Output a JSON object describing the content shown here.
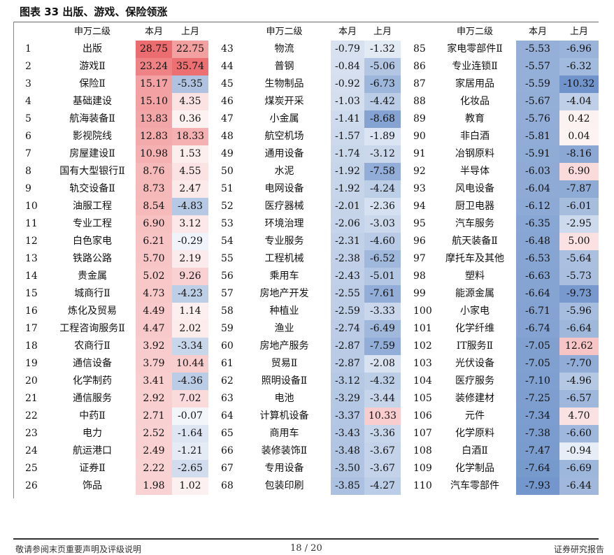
{
  "title": "图表 33 出版、游戏、保险领涨",
  "headers": {
    "industry": "申万二级",
    "this_month": "本月",
    "last_month": "上月"
  },
  "colors": {
    "neg_strong": "#6c91c9",
    "pos_strong": "#ec6d6f",
    "neutral": "#ffffff"
  },
  "rows": [
    {
      "rank": "1",
      "name": "出版",
      "this": 28.75,
      "last": 22.75
    },
    {
      "rank": "2",
      "name": "游戏Ⅱ",
      "this": 23.24,
      "last": 35.74
    },
    {
      "rank": "3",
      "name": "保险Ⅱ",
      "this": 15.17,
      "last": -5.35
    },
    {
      "rank": "4",
      "name": "基础建设",
      "this": 15.1,
      "last": 4.35
    },
    {
      "rank": "5",
      "name": "航海装备Ⅱ",
      "this": 13.83,
      "last": 0.36
    },
    {
      "rank": "6",
      "name": "影视院线",
      "this": 12.83,
      "last": 18.33
    },
    {
      "rank": "7",
      "name": "房屋建设Ⅱ",
      "this": 10.98,
      "last": 1.53
    },
    {
      "rank": "8",
      "name": "国有大型银行Ⅱ",
      "this": 8.76,
      "last": 4.55
    },
    {
      "rank": "9",
      "name": "轨交设备Ⅱ",
      "this": 8.73,
      "last": 2.47
    },
    {
      "rank": "10",
      "name": "油服工程",
      "this": 8.54,
      "last": -4.83
    },
    {
      "rank": "11",
      "name": "专业工程",
      "this": 6.9,
      "last": 3.12
    },
    {
      "rank": "12",
      "name": "白色家电",
      "this": 6.21,
      "last": -0.29
    },
    {
      "rank": "13",
      "name": "铁路公路",
      "this": 5.7,
      "last": 2.19
    },
    {
      "rank": "14",
      "name": "贵金属",
      "this": 5.02,
      "last": 9.26
    },
    {
      "rank": "15",
      "name": "城商行Ⅱ",
      "this": 4.73,
      "last": -4.23
    },
    {
      "rank": "16",
      "name": "炼化及贸易",
      "this": 4.49,
      "last": 1.14
    },
    {
      "rank": "17",
      "name": "工程咨询服务Ⅱ",
      "this": 4.47,
      "last": 2.02
    },
    {
      "rank": "18",
      "name": "农商行Ⅱ",
      "this": 3.92,
      "last": -3.34
    },
    {
      "rank": "19",
      "name": "通信设备",
      "this": 3.79,
      "last": 10.44
    },
    {
      "rank": "20",
      "name": "化学制药",
      "this": 3.41,
      "last": -4.36
    },
    {
      "rank": "21",
      "name": "通信服务",
      "this": 2.92,
      "last": 7.02
    },
    {
      "rank": "22",
      "name": "中药Ⅱ",
      "this": 2.71,
      "last": -0.07
    },
    {
      "rank": "23",
      "name": "电力",
      "this": 2.52,
      "last": -1.64
    },
    {
      "rank": "24",
      "name": "航运港口",
      "this": 2.49,
      "last": -1.21
    },
    {
      "rank": "25",
      "name": "证券Ⅱ",
      "this": 2.22,
      "last": -2.65
    },
    {
      "rank": "26",
      "name": "饰品",
      "this": 1.98,
      "last": 1.02
    },
    {
      "rank": "43",
      "name": "物流",
      "this": -0.79,
      "last": -1.32
    },
    {
      "rank": "44",
      "name": "普钢",
      "this": -0.84,
      "last": -5.06
    },
    {
      "rank": "45",
      "name": "生物制品",
      "this": -0.92,
      "last": -6.73
    },
    {
      "rank": "46",
      "name": "煤炭开采",
      "this": -1.03,
      "last": -4.42
    },
    {
      "rank": "47",
      "name": "小金属",
      "this": -1.41,
      "last": -8.68
    },
    {
      "rank": "48",
      "name": "航空机场",
      "this": -1.57,
      "last": -1.89
    },
    {
      "rank": "49",
      "name": "通用设备",
      "this": -1.74,
      "last": -3.12
    },
    {
      "rank": "50",
      "name": "水泥",
      "this": -1.92,
      "last": -7.58
    },
    {
      "rank": "51",
      "name": "电网设备",
      "this": -1.92,
      "last": -4.24
    },
    {
      "rank": "52",
      "name": "医疗器械",
      "this": -2.01,
      "last": -2.36
    },
    {
      "rank": "53",
      "name": "环境治理",
      "this": -2.06,
      "last": -3.03
    },
    {
      "rank": "54",
      "name": "专业服务",
      "this": -2.31,
      "last": -4.6
    },
    {
      "rank": "55",
      "name": "工程机械",
      "this": -2.38,
      "last": -6.52
    },
    {
      "rank": "56",
      "name": "乘用车",
      "this": -2.43,
      "last": -5.01
    },
    {
      "rank": "57",
      "name": "房地产开发",
      "this": -2.55,
      "last": -7.61
    },
    {
      "rank": "58",
      "name": "种植业",
      "this": -2.59,
      "last": -3.33
    },
    {
      "rank": "59",
      "name": "渔业",
      "this": -2.74,
      "last": -6.49
    },
    {
      "rank": "60",
      "name": "房地产服务",
      "this": -2.87,
      "last": -7.59
    },
    {
      "rank": "61",
      "name": "贸易Ⅱ",
      "this": -2.87,
      "last": -2.08
    },
    {
      "rank": "62",
      "name": "照明设备Ⅱ",
      "this": -3.12,
      "last": -4.32
    },
    {
      "rank": "63",
      "name": "电池",
      "this": -3.29,
      "last": -3.44
    },
    {
      "rank": "64",
      "name": "计算机设备",
      "this": -3.37,
      "last": 10.33
    },
    {
      "rank": "65",
      "name": "商用车",
      "this": -3.43,
      "last": -3.36
    },
    {
      "rank": "66",
      "name": "装修装饰Ⅱ",
      "this": -3.48,
      "last": -3.67
    },
    {
      "rank": "67",
      "name": "专用设备",
      "this": -3.5,
      "last": -3.67
    },
    {
      "rank": "68",
      "name": "包装印刷",
      "this": -3.85,
      "last": -4.27
    },
    {
      "rank": "85",
      "name": "家电零部件Ⅱ",
      "this": -5.53,
      "last": -6.96
    },
    {
      "rank": "86",
      "name": "专业连锁Ⅱ",
      "this": -5.57,
      "last": -6.32
    },
    {
      "rank": "87",
      "name": "家居用品",
      "this": -5.59,
      "last": -10.32
    },
    {
      "rank": "88",
      "name": "化妆品",
      "this": -5.67,
      "last": -4.04
    },
    {
      "rank": "89",
      "name": "教育",
      "this": -5.76,
      "last": 0.42
    },
    {
      "rank": "90",
      "name": "非白酒",
      "this": -5.81,
      "last": 0.04
    },
    {
      "rank": "91",
      "name": "冶钢原料",
      "this": -5.91,
      "last": -8.16
    },
    {
      "rank": "92",
      "name": "半导体",
      "this": -6.03,
      "last": 6.9
    },
    {
      "rank": "93",
      "name": "风电设备",
      "this": -6.04,
      "last": -7.87
    },
    {
      "rank": "94",
      "name": "厨卫电器",
      "this": -6.12,
      "last": -6.01
    },
    {
      "rank": "95",
      "name": "汽车服务",
      "this": -6.35,
      "last": -2.95
    },
    {
      "rank": "96",
      "name": "航天装备Ⅱ",
      "this": -6.48,
      "last": 5.0
    },
    {
      "rank": "97",
      "name": "摩托车及其他",
      "this": -6.53,
      "last": -5.64
    },
    {
      "rank": "98",
      "name": "塑料",
      "this": -6.63,
      "last": -5.73
    },
    {
      "rank": "99",
      "name": "能源金属",
      "this": -6.64,
      "last": -9.73
    },
    {
      "rank": "100",
      "name": "小家电",
      "this": -6.71,
      "last": -5.96
    },
    {
      "rank": "101",
      "name": "化学纤维",
      "this": -6.74,
      "last": -6.64
    },
    {
      "rank": "102",
      "name": "IT服务Ⅱ",
      "this": -7.05,
      "last": 12.62
    },
    {
      "rank": "103",
      "name": "光伏设备",
      "this": -7.05,
      "last": -7.7
    },
    {
      "rank": "104",
      "name": "医疗服务",
      "this": -7.1,
      "last": -4.96
    },
    {
      "rank": "105",
      "name": "装修建材",
      "this": -7.25,
      "last": -6.57
    },
    {
      "rank": "106",
      "name": "元件",
      "this": -7.34,
      "last": 4.7
    },
    {
      "rank": "107",
      "name": "化学原料",
      "this": -7.38,
      "last": -6.6
    },
    {
      "rank": "108",
      "name": "白酒Ⅱ",
      "this": -7.47,
      "last": -0.94
    },
    {
      "rank": "109",
      "name": "化学制品",
      "this": -7.64,
      "last": -6.69
    },
    {
      "rank": "110",
      "name": "汽车零部件",
      "this": -7.93,
      "last": -6.44
    }
  ],
  "footer": {
    "disclaimer": "敬请参阅末页重要声明及评级说明",
    "page": "18 / 20",
    "brand": "证券研究报告"
  }
}
